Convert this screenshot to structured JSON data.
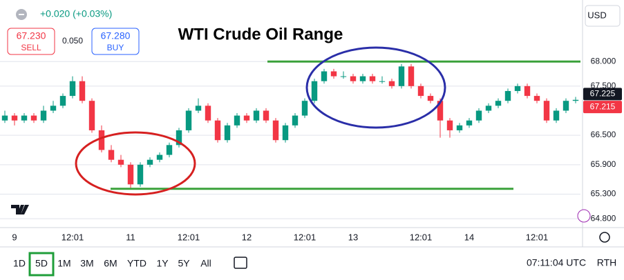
{
  "ui": {
    "change": "+0.020 (+0.03%)",
    "sell_price": "67.230",
    "sell_label": "SELL",
    "spread": "0.050",
    "buy_price": "67.280",
    "buy_label": "BUY",
    "currency": "USD",
    "timeframes": [
      "1D",
      "5D",
      "1M",
      "3M",
      "6M",
      "YTD",
      "1Y",
      "5Y",
      "All"
    ],
    "selected_timeframe": 1,
    "clock": "07:11:04 UTC",
    "session": "RTH"
  },
  "chart_data": {
    "type": "candlestick",
    "title": "WTI Crude Oil Range",
    "up_color": "#089981",
    "down_color": "#f23645",
    "categories": [
      null,
      "9",
      null,
      null,
      null,
      null,
      null,
      "12:01",
      null,
      null,
      null,
      null,
      null,
      "11",
      null,
      null,
      null,
      null,
      null,
      "12:01",
      null,
      null,
      null,
      null,
      null,
      "12",
      null,
      null,
      null,
      null,
      null,
      "12:01",
      null,
      null,
      null,
      null,
      "13",
      null,
      null,
      null,
      null,
      null,
      null,
      "12:01",
      null,
      null,
      null,
      null,
      "14",
      null,
      null,
      null,
      null,
      null,
      null,
      "12:01",
      null,
      null,
      null,
      null
    ],
    "open": [
      66.8,
      66.9,
      66.8,
      66.9,
      66.8,
      67.0,
      67.1,
      67.3,
      67.6,
      67.2,
      66.6,
      66.2,
      66.0,
      65.9,
      65.5,
      65.9,
      66.0,
      66.1,
      66.3,
      66.6,
      67.0,
      67.1,
      66.8,
      66.4,
      66.7,
      66.9,
      66.8,
      67.0,
      66.8,
      66.4,
      66.7,
      66.9,
      67.2,
      67.6,
      67.8,
      67.7,
      67.7,
      67.6,
      67.7,
      67.6,
      67.6,
      67.5,
      67.9,
      67.5,
      67.3,
      67.2,
      66.8,
      66.6,
      66.7,
      66.8,
      67.0,
      67.1,
      67.2,
      67.4,
      67.5,
      67.3,
      67.2,
      66.8,
      67.0,
      67.2
    ],
    "high": [
      67.0,
      66.95,
      66.95,
      66.95,
      67.1,
      67.2,
      67.35,
      67.7,
      67.7,
      67.25,
      66.7,
      66.3,
      66.1,
      65.95,
      65.95,
      66.05,
      66.15,
      66.35,
      66.65,
      67.05,
      67.25,
      67.15,
      66.85,
      66.75,
      66.95,
      66.95,
      67.05,
      67.05,
      66.85,
      66.75,
      66.95,
      67.25,
      67.65,
      67.85,
      67.85,
      67.8,
      67.75,
      67.75,
      67.75,
      67.7,
      67.65,
      67.95,
      67.95,
      67.55,
      67.35,
      67.25,
      66.85,
      66.75,
      66.85,
      67.05,
      67.15,
      67.25,
      67.45,
      67.55,
      67.55,
      67.35,
      67.25,
      67.05,
      67.25,
      67.28
    ],
    "low": [
      66.75,
      66.7,
      66.75,
      66.75,
      66.75,
      66.95,
      67.05,
      67.25,
      67.15,
      66.55,
      66.15,
      65.95,
      65.85,
      65.42,
      65.45,
      65.85,
      65.95,
      66.05,
      66.25,
      66.55,
      66.95,
      66.75,
      66.35,
      66.35,
      66.65,
      66.75,
      66.75,
      66.75,
      66.35,
      66.35,
      66.65,
      66.85,
      67.15,
      67.55,
      67.65,
      67.65,
      67.55,
      67.55,
      67.55,
      67.55,
      67.45,
      67.45,
      67.45,
      67.25,
      67.15,
      66.45,
      66.45,
      66.55,
      66.65,
      66.75,
      66.95,
      67.05,
      67.15,
      67.35,
      67.25,
      67.15,
      66.75,
      66.75,
      66.95,
      67.15
    ],
    "close": [
      66.9,
      66.8,
      66.9,
      66.8,
      67.0,
      67.1,
      67.3,
      67.6,
      67.2,
      66.6,
      66.2,
      66.0,
      65.9,
      65.5,
      65.9,
      66.0,
      66.1,
      66.3,
      66.6,
      67.0,
      67.1,
      66.8,
      66.4,
      66.7,
      66.9,
      66.8,
      67.0,
      66.8,
      66.4,
      66.7,
      66.9,
      67.2,
      67.6,
      67.8,
      67.7,
      67.7,
      67.6,
      67.7,
      67.6,
      67.6,
      67.5,
      67.9,
      67.5,
      67.3,
      67.2,
      66.8,
      66.6,
      66.7,
      66.8,
      67.0,
      67.1,
      67.2,
      67.4,
      67.5,
      67.3,
      67.2,
      66.8,
      67.0,
      67.2,
      67.22
    ],
    "ylim": [
      64.62,
      69.14
    ],
    "yticks": [
      {
        "value": 68,
        "label": "68.000"
      },
      {
        "value": 67.5,
        "label": "67.500"
      },
      {
        "value": 66.5,
        "label": "66.500"
      },
      {
        "value": 65.9,
        "label": "65.900"
      },
      {
        "value": 65.3,
        "label": "65.300"
      },
      {
        "value": 64.8,
        "label": "64.800"
      }
    ],
    "hlines": [
      {
        "value": 68,
        "color": "#3aa13a"
      },
      {
        "value": 65.41,
        "color": "#3aa13a"
      }
    ],
    "price_labels": [
      {
        "value": 67.225,
        "color": "#131722"
      },
      {
        "value": 67.215,
        "color": "#f23645"
      }
    ]
  }
}
